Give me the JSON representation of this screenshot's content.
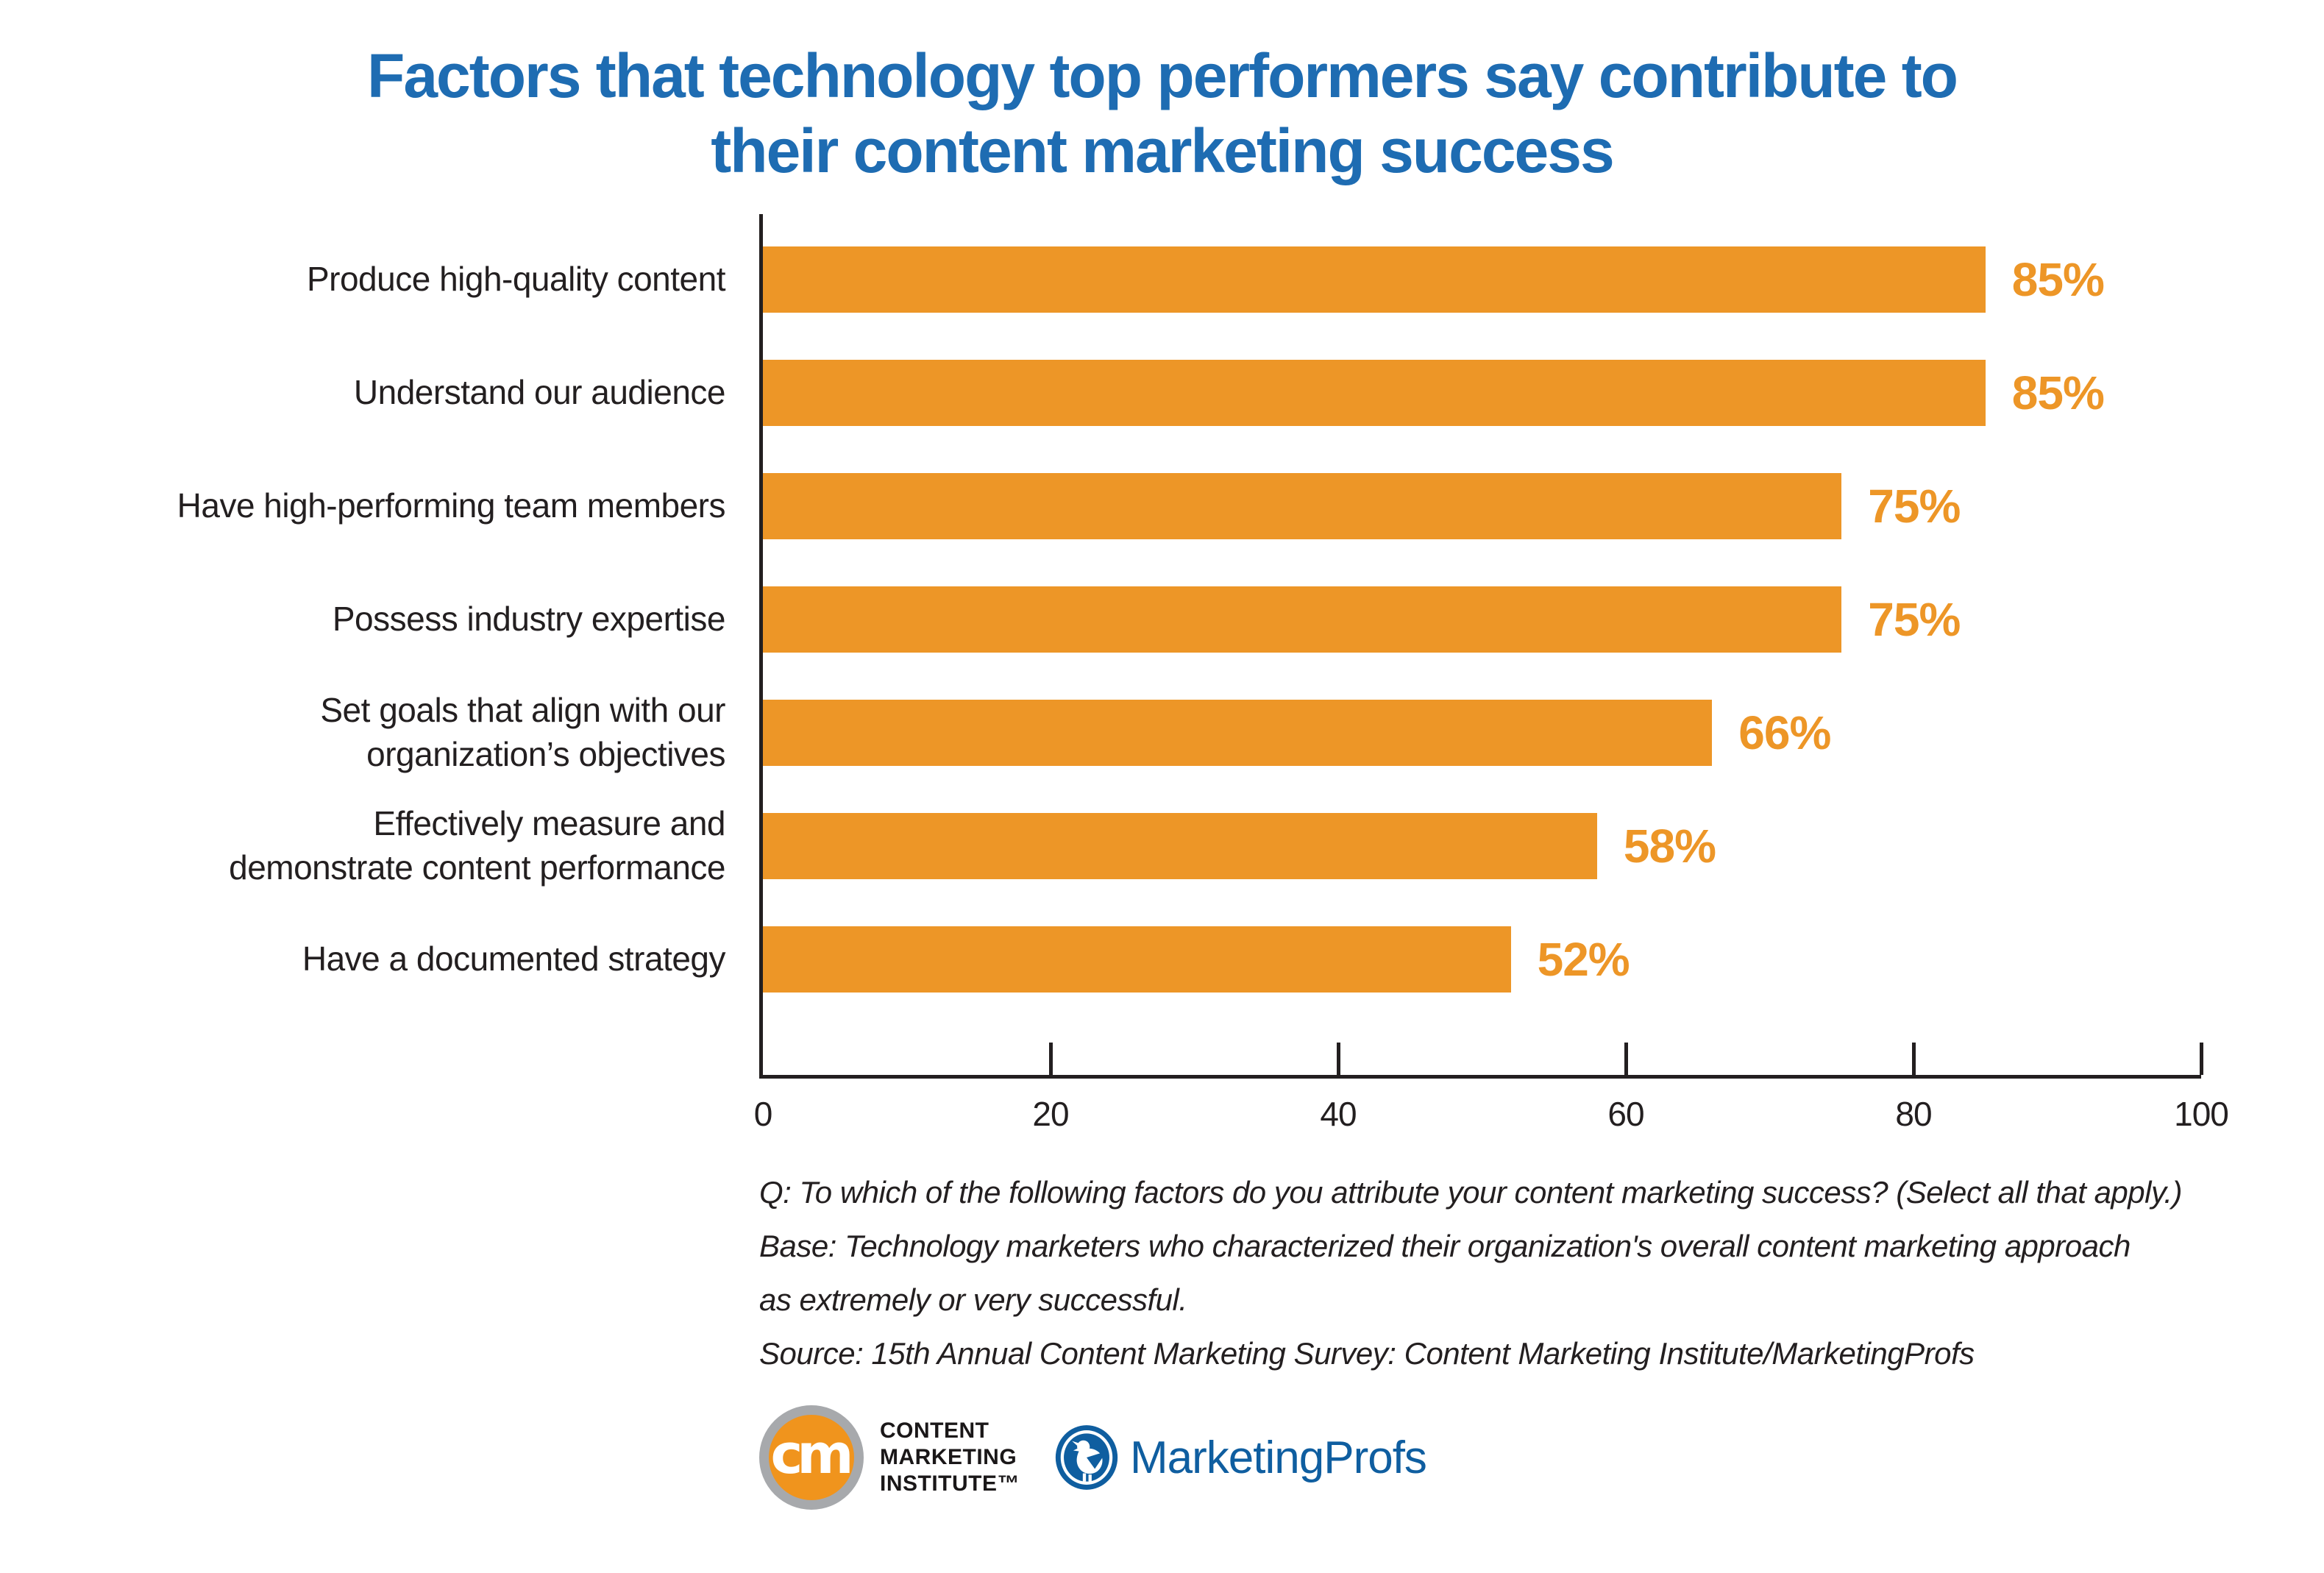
{
  "chart_data": {
    "type": "bar",
    "orientation": "horizontal",
    "title": "Factors that technology top performers say contribute to\ntheir content marketing success",
    "categories": [
      "Produce high-quality content",
      "Understand our audience",
      "Have high-performing team members",
      "Possess industry expertise",
      "Set goals that align with our\norganization’s objectives",
      "Effectively measure and\ndemonstrate content performance",
      "Have a documented strategy"
    ],
    "values": [
      85,
      85,
      75,
      75,
      66,
      58,
      52
    ],
    "value_labels": [
      "85%",
      "85%",
      "75%",
      "75%",
      "66%",
      "58%",
      "52%"
    ],
    "xlabel": "",
    "ylabel": "",
    "xlim": [
      0,
      100
    ],
    "x_ticks": [
      0,
      20,
      40,
      60,
      80,
      100
    ],
    "grid": false,
    "legend": false,
    "bar_color": "#ED9627"
  },
  "footnotes": [
    "Q: To which of the following factors do you attribute your content marketing success? (Select all that apply.)",
    "Base: Technology marketers who characterized their organization's overall content marketing approach\nas extremely or very successful.",
    "Source: 15th Annual Content Marketing Survey: Content Marketing Institute/MarketingProfs"
  ],
  "footer": {
    "cmi": {
      "monogram": "cm",
      "wordmark": "CONTENT\nMARKETING\nINSTITUTE™"
    },
    "marketingprofs": {
      "bird_icon": "bird-in-circle",
      "wordmark": "MarketingProfs"
    }
  },
  "colors": {
    "title_blue": "#1E6CB2",
    "bar_orange": "#ED9627",
    "value_orange": "#ED9627",
    "text_dark": "#231F20",
    "axis_dark": "#231F20",
    "cmi_orange": "#F0941D",
    "cmi_ring_gray": "#A7A9AC",
    "cmi_text_black": "#1A1718",
    "mp_blue": "#0F5EA0"
  }
}
